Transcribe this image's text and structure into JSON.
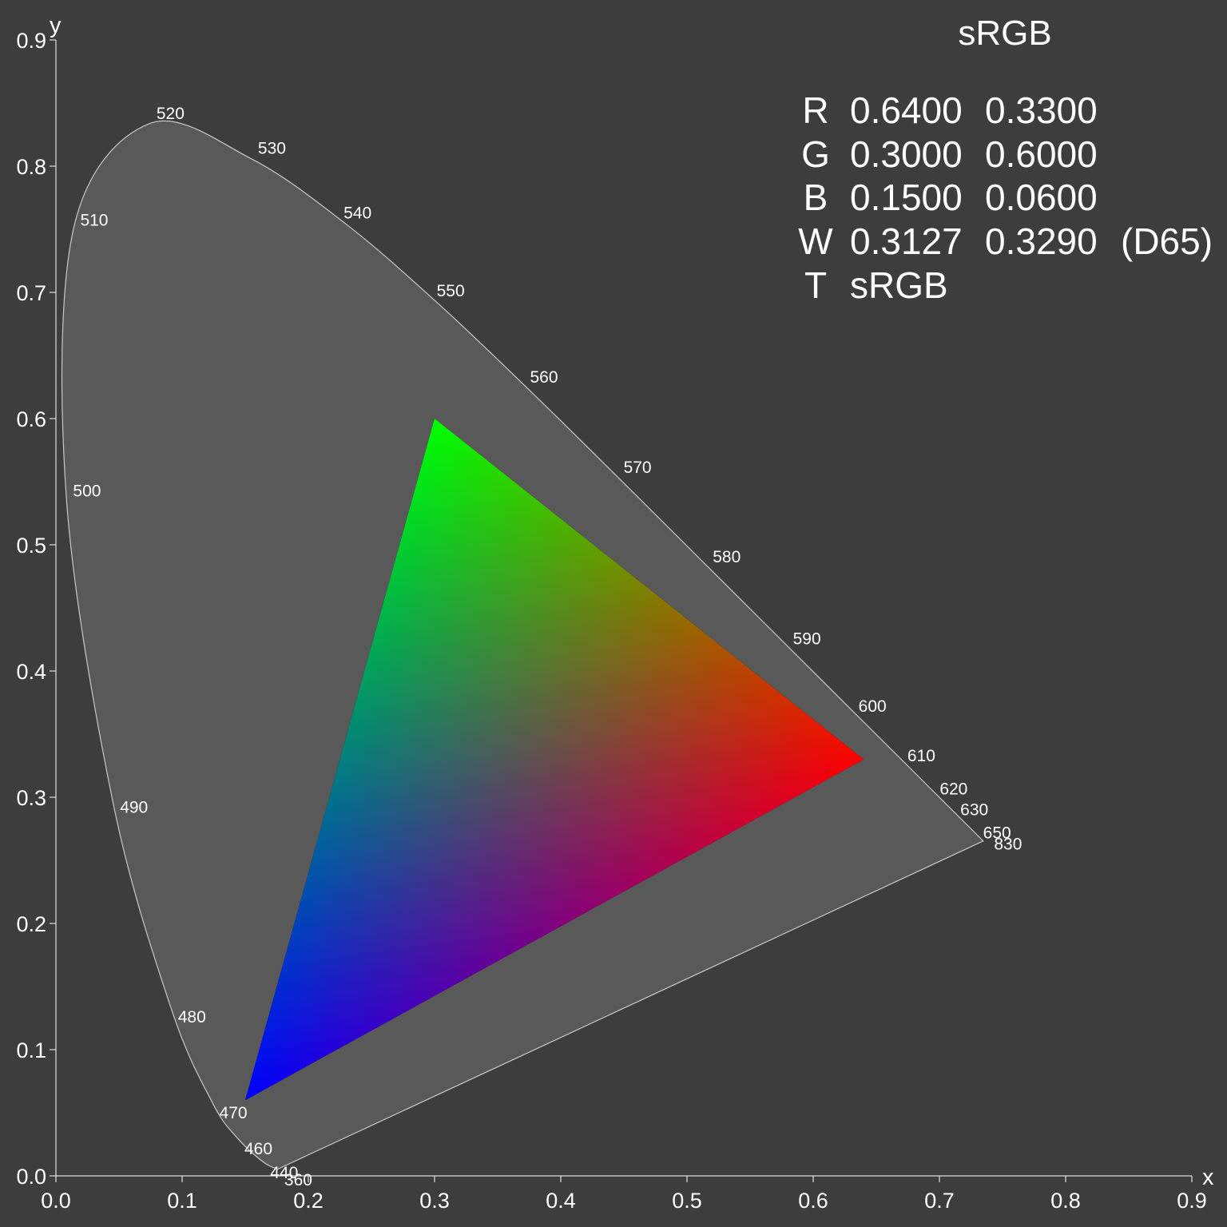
{
  "chart_data": {
    "type": "scatter",
    "title": "sRGB",
    "xlabel": "x",
    "ylabel": "y",
    "xlim": [
      0.0,
      0.9
    ],
    "ylim": [
      0.0,
      0.9
    ],
    "x_ticks": [
      "0.0",
      "0.1",
      "0.2",
      "0.3",
      "0.4",
      "0.5",
      "0.6",
      "0.7",
      "0.8",
      "0.9"
    ],
    "y_ticks": [
      "0.0",
      "0.1",
      "0.2",
      "0.3",
      "0.4",
      "0.5",
      "0.6",
      "0.7",
      "0.8",
      "0.9"
    ],
    "grid": false,
    "colors": {
      "background": "#3d3d3d",
      "locus_fill": "#595959",
      "locus_stroke": "#c8c8c8",
      "text": "#ffffff",
      "red": "#ff0000",
      "green": "#00ff00",
      "blue": "#0000ff"
    },
    "spectral_locus": [
      {
        "label": "360",
        "x": 0.1756,
        "y": 0.0053
      },
      {
        "label": "440",
        "x": 0.1644,
        "y": 0.0109
      },
      {
        "label": "460",
        "x": 0.144,
        "y": 0.0297
      },
      {
        "label": "470",
        "x": 0.1241,
        "y": 0.0578
      },
      {
        "label": "480",
        "x": 0.0913,
        "y": 0.1327
      },
      {
        "label": "490",
        "x": 0.0454,
        "y": 0.295
      },
      {
        "label": "500",
        "x": 0.0082,
        "y": 0.5384
      },
      {
        "label": "510",
        "x": 0.0139,
        "y": 0.7502
      },
      {
        "label": "520",
        "x": 0.0743,
        "y": 0.8338
      },
      {
        "label": "530",
        "x": 0.1547,
        "y": 0.8059
      },
      {
        "label": "540",
        "x": 0.2296,
        "y": 0.7543
      },
      {
        "label": "550",
        "x": 0.3016,
        "y": 0.6923
      },
      {
        "label": "560",
        "x": 0.3731,
        "y": 0.6245
      },
      {
        "label": "570",
        "x": 0.4441,
        "y": 0.5547
      },
      {
        "label": "580",
        "x": 0.5125,
        "y": 0.4866
      },
      {
        "label": "590",
        "x": 0.5752,
        "y": 0.4242
      },
      {
        "label": "600",
        "x": 0.627,
        "y": 0.3725
      },
      {
        "label": "610",
        "x": 0.6658,
        "y": 0.334
      },
      {
        "label": "620",
        "x": 0.6915,
        "y": 0.3083
      },
      {
        "label": "630",
        "x": 0.7079,
        "y": 0.292
      },
      {
        "label": "650",
        "x": 0.726,
        "y": 0.274
      },
      {
        "label": "830",
        "x": 0.7347,
        "y": 0.2653
      }
    ],
    "gamut": {
      "red": {
        "x": 0.64,
        "y": 0.33
      },
      "green": {
        "x": 0.3,
        "y": 0.6
      },
      "blue": {
        "x": 0.15,
        "y": 0.06
      },
      "white": {
        "x": 0.3127,
        "y": 0.329
      }
    },
    "info_lines": [
      {
        "key": "R",
        "v1": "0.6400",
        "v2": "0.3300",
        "extra": ""
      },
      {
        "key": "G",
        "v1": "0.3000",
        "v2": "0.6000",
        "extra": ""
      },
      {
        "key": "B",
        "v1": "0.1500",
        "v2": "0.0600",
        "extra": ""
      },
      {
        "key": "W",
        "v1": "0.3127",
        "v2": "0.3290",
        "extra": "(D65)"
      },
      {
        "key": "T",
        "v1": "sRGB",
        "v2": "",
        "extra": ""
      }
    ]
  }
}
